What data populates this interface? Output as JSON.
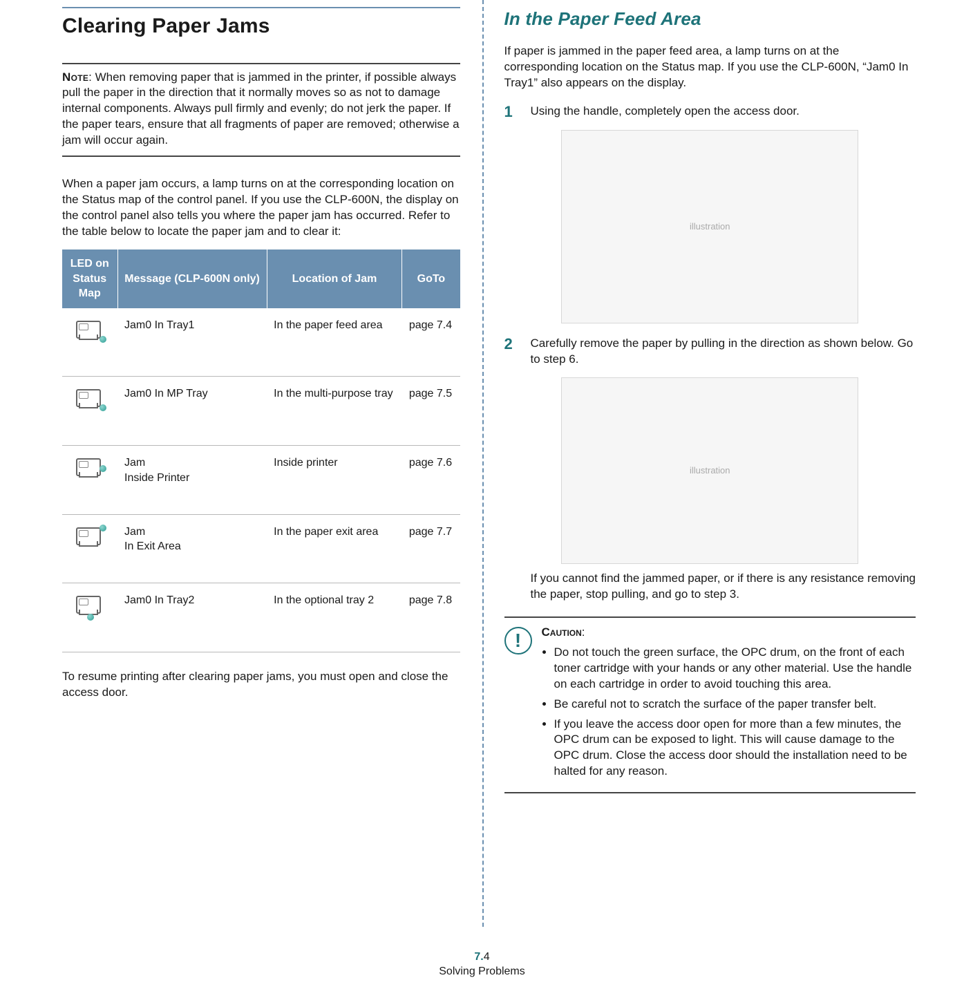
{
  "colors": {
    "accent": "#6a8fb0",
    "teal": "#1e7379",
    "noteRule": "#444444",
    "rowBorder": "#b8b8b8"
  },
  "left": {
    "title": "Clearing Paper Jams",
    "note_label": "Note",
    "note_body": ": When removing paper that is jammed in the printer, if possible always pull the paper in the direction that it normally moves so as not to damage internal components. Always pull firmly and evenly; do not jerk the paper. If the paper tears, ensure that all fragments of paper are removed; otherwise a jam will occur again.",
    "intro": "When a paper jam occurs, a lamp turns on at the corresponding location on the Status map of the control panel. If you use the CLP-600N, the display on the control panel also tells you where the paper jam has occurred. Refer to the table below to locate the paper jam and to clear it:",
    "table": {
      "headers": [
        "LED on Status Map",
        "Message (CLP-600N only)",
        "Location of Jam",
        "GoTo"
      ],
      "rows": [
        {
          "led": "bottom-right",
          "msg": "Jam0 In Tray1",
          "loc": "In the paper feed area",
          "goto": "page 7.4"
        },
        {
          "led": "bottom-right",
          "msg": "Jam0 In MP Tray",
          "loc": "In the multi-purpose tray",
          "goto": "page 7.5"
        },
        {
          "led": "mid-right",
          "msg": "Jam\nInside Printer",
          "loc": "Inside printer",
          "goto": "page 7.6"
        },
        {
          "led": "top-right",
          "msg": "Jam\nIn Exit Area",
          "loc": "In the paper exit area",
          "goto": "page 7.7"
        },
        {
          "led": "bottom-center",
          "msg": "Jam0 In Tray2",
          "loc": "In the optional tray 2",
          "goto": "page 7.8"
        }
      ]
    },
    "after_table": "To resume printing after clearing paper jams, you must open and close the access door."
  },
  "right": {
    "heading": "In the Paper Feed Area",
    "lead": "If paper is jammed in the paper feed area, a lamp turns on at the corresponding location on the Status map. If you use the CLP-600N, “Jam0 In Tray1” also appears on the display.",
    "steps": [
      {
        "n": "1",
        "text": "Using the handle, completely open the access door."
      },
      {
        "n": "2",
        "text": "Carefully remove the paper by pulling in the direction as shown below. Go to step 6."
      }
    ],
    "step2_followup": "If you cannot find the jammed paper, or if there is any resistance removing the paper, stop pulling, and go to step 3.",
    "caution_label": "Caution",
    "caution_items": [
      "Do not touch the green surface, the OPC drum, on the front of each toner cartridge with your hands or any other material. Use the handle on each cartridge in order to avoid touching this area.",
      "Be careful not to scratch the surface of the paper transfer belt.",
      "If you leave the access door open for more than a few minutes, the OPC drum can be exposed to light. This will cause damage to the OPC drum. Close the access door should the installation need to be halted for any reason."
    ]
  },
  "footer": {
    "chapter_num": "7.",
    "page_in_chapter": "4",
    "section": "Solving Problems"
  }
}
